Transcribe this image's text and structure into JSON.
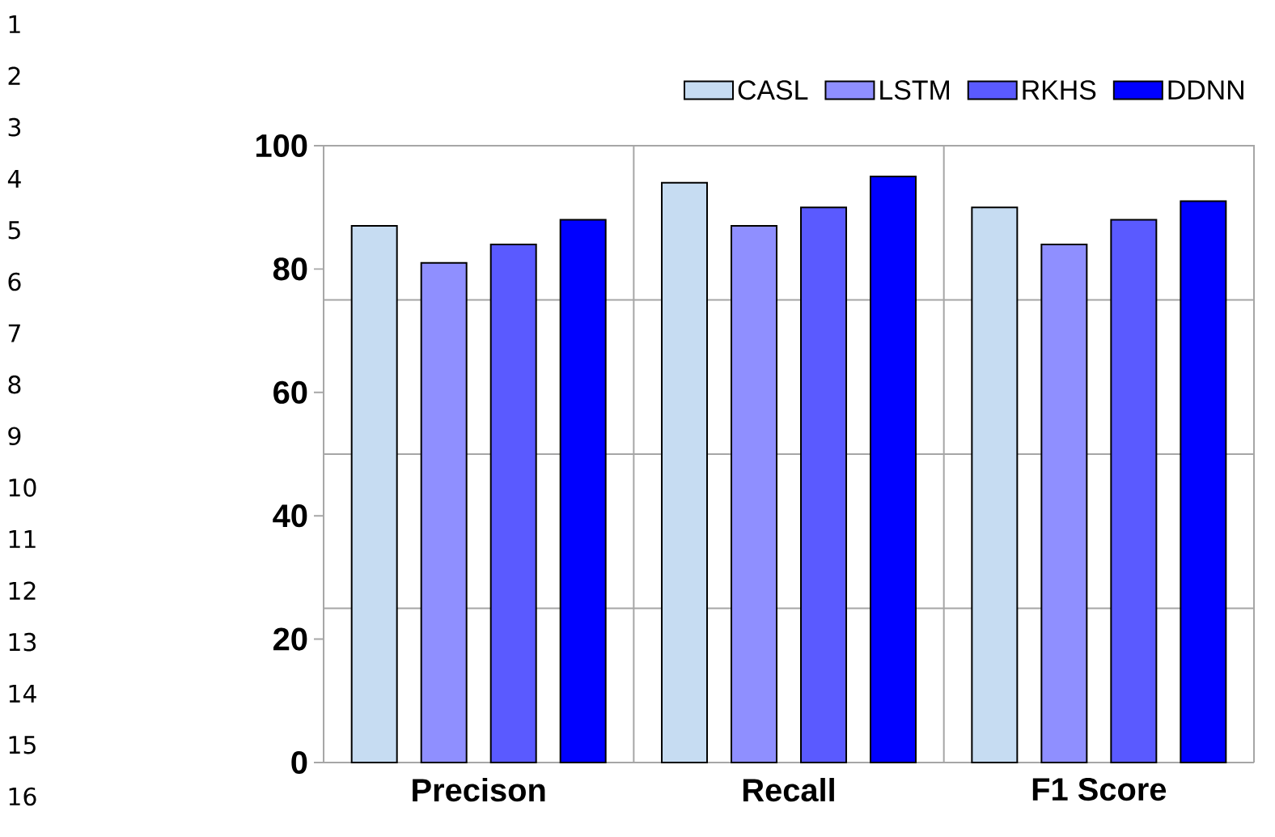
{
  "chart_data": {
    "type": "bar",
    "categories": [
      "Precison",
      "Recall",
      "F1 Score"
    ],
    "series": [
      {
        "name": "CASL",
        "color": "#c6dcf2",
        "values": [
          87,
          94,
          90
        ]
      },
      {
        "name": "LSTM",
        "color": "#8f8fff",
        "values": [
          81,
          87,
          84
        ]
      },
      {
        "name": "RKHS",
        "color": "#5a5aff",
        "values": [
          84,
          90,
          88
        ]
      },
      {
        "name": "DDNN",
        "color": "#0000ff",
        "values": [
          88,
          95,
          91
        ]
      }
    ],
    "ylim": [
      0,
      100
    ],
    "yticks": [
      0,
      20,
      {
        "value": 25,
        "label": null
      },
      40,
      {
        "value": 50,
        "label": null
      },
      60,
      {
        "value": 75,
        "label": null
      },
      80,
      100
    ],
    "grid": true,
    "legend": "top right",
    "annotations": [
      "1",
      "2",
      "3",
      "4",
      "5",
      "6",
      "7",
      "8",
      "9",
      "10",
      "11",
      "12",
      "13",
      "14",
      "15",
      "16"
    ]
  }
}
